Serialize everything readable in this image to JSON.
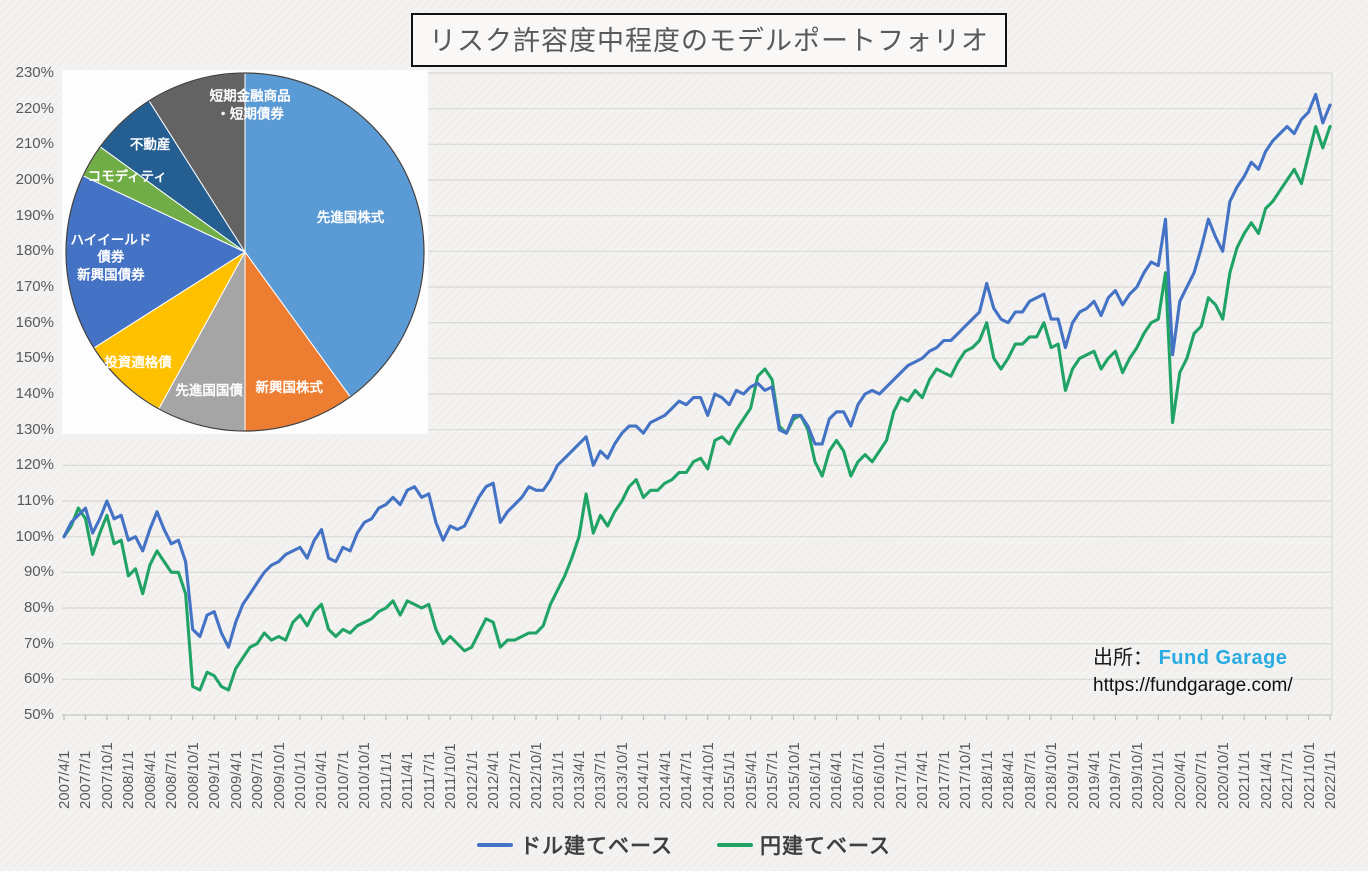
{
  "title": "リスク許容度中程度のモデルポートフォリオ",
  "source": {
    "prefix": "出所：",
    "name": "Fund Garage",
    "url": "https://fundgarage.com/",
    "name_color": "#29abe2"
  },
  "axes": {
    "y_unit": "%",
    "y_min_label": "50%",
    "y_max_label": "230%"
  },
  "chart_data": [
    {
      "type": "line",
      "title": "リスク許容度中程度のモデルポートフォリオ",
      "xlabel": "",
      "ylabel": "",
      "ylim": [
        50,
        230
      ],
      "ytick_step": 10,
      "grid": "horizontal",
      "legend_position": "bottom",
      "x_frequency": "monthly",
      "x_start": "2007/4/1",
      "x_end": "2022/1/1",
      "y_tick_labels": [
        "230%",
        "220%",
        "210%",
        "200%",
        "190%",
        "180%",
        "170%",
        "160%",
        "150%",
        "140%",
        "130%",
        "120%",
        "110%",
        "100%",
        "90%",
        "80%",
        "70%",
        "60%",
        "50%"
      ],
      "x_tick_labels": [
        "2007/4/1",
        "2007/7/1",
        "2007/10/1",
        "2008/1/1",
        "2008/4/1",
        "2008/7/1",
        "2008/10/1",
        "2009/1/1",
        "2009/4/1",
        "2009/7/1",
        "2009/10/1",
        "2010/1/1",
        "2010/4/1",
        "2010/7/1",
        "2010/10/1",
        "2011/1/1",
        "2011/4/1",
        "2011/7/1",
        "2011/10/1",
        "2012/1/1",
        "2012/4/1",
        "2012/7/1",
        "2012/10/1",
        "2013/1/1",
        "2013/4/1",
        "2013/7/1",
        "2013/10/1",
        "2014/1/1",
        "2014/4/1",
        "2014/7/1",
        "2014/10/1",
        "2015/1/1",
        "2015/4/1",
        "2015/7/1",
        "2015/10/1",
        "2016/1/1",
        "2016/4/1",
        "2016/7/1",
        "2016/10/1",
        "2017/1/1",
        "2017/4/1",
        "2017/7/1",
        "2017/10/1",
        "2018/1/1",
        "2018/4/1",
        "2018/7/1",
        "2018/10/1",
        "2019/1/1",
        "2019/4/1",
        "2019/7/1",
        "2019/10/1",
        "2020/1/1",
        "2020/4/1",
        "2020/7/1",
        "2020/10/1",
        "2021/1/1",
        "2021/4/1",
        "2021/7/1",
        "2021/10/1",
        "2022/1/1"
      ],
      "series": [
        {
          "name": "ドル建てベース",
          "color": "#4472C4",
          "values": [
            100,
            104,
            106,
            108,
            101,
            105,
            110,
            105,
            106,
            99,
            100,
            96,
            102,
            107,
            102,
            98,
            99,
            93,
            74,
            72,
            78,
            79,
            73,
            69,
            76,
            81,
            84,
            87,
            90,
            92,
            93,
            95,
            96,
            97,
            94,
            99,
            102,
            94,
            93,
            97,
            96,
            101,
            104,
            105,
            108,
            109,
            111,
            109,
            113,
            114,
            111,
            112,
            104,
            99,
            103,
            102,
            103,
            107,
            111,
            114,
            115,
            104,
            107,
            109,
            111,
            114,
            113,
            113,
            116,
            120,
            122,
            124,
            126,
            128,
            120,
            124,
            122,
            126,
            129,
            131,
            131,
            129,
            132,
            133,
            134,
            136,
            138,
            137,
            139,
            139,
            134,
            140,
            139,
            137,
            141,
            140,
            142,
            143,
            141,
            142,
            130,
            129,
            134,
            134,
            131,
            126,
            126,
            133,
            135,
            135,
            131,
            137,
            140,
            141,
            140,
            142,
            144,
            146,
            148,
            149,
            150,
            152,
            153,
            155,
            155,
            157,
            159,
            161,
            163,
            171,
            164,
            161,
            160,
            163,
            163,
            166,
            167,
            168,
            161,
            161,
            153,
            160,
            163,
            164,
            166,
            162,
            167,
            169,
            165,
            168,
            170,
            174,
            177,
            176,
            189,
            151,
            166,
            170,
            174,
            181,
            189,
            184,
            180,
            194,
            198,
            201,
            205,
            203,
            208,
            211,
            213,
            215,
            213,
            217,
            219,
            224,
            216,
            221
          ]
        },
        {
          "name": "円建てベース",
          "color": "#21A366",
          "values": [
            100,
            103,
            108,
            105,
            95,
            101,
            106,
            98,
            99,
            89,
            91,
            84,
            92,
            96,
            93,
            90,
            90,
            84,
            58,
            57,
            62,
            61,
            58,
            57,
            63,
            66,
            69,
            70,
            73,
            71,
            72,
            71,
            76,
            78,
            75,
            79,
            81,
            74,
            72,
            74,
            73,
            75,
            76,
            77,
            79,
            80,
            82,
            78,
            82,
            81,
            80,
            81,
            74,
            70,
            72,
            70,
            68,
            69,
            73,
            77,
            76,
            69,
            71,
            71,
            72,
            73,
            73,
            75,
            81,
            85,
            89,
            94,
            100,
            112,
            101,
            106,
            103,
            107,
            110,
            114,
            116,
            111,
            113,
            113,
            115,
            116,
            118,
            118,
            121,
            122,
            119,
            127,
            128,
            126,
            130,
            133,
            136,
            145,
            147,
            144,
            131,
            129,
            133,
            134,
            130,
            121,
            117,
            124,
            127,
            124,
            117,
            121,
            123,
            121,
            124,
            127,
            135,
            139,
            138,
            141,
            139,
            144,
            147,
            146,
            145,
            149,
            152,
            153,
            155,
            160,
            150,
            147,
            150,
            154,
            154,
            156,
            156,
            160,
            153,
            154,
            141,
            147,
            150,
            151,
            152,
            147,
            150,
            152,
            146,
            150,
            153,
            157,
            160,
            161,
            174,
            132,
            146,
            150,
            157,
            159,
            167,
            165,
            161,
            174,
            181,
            185,
            188,
            185,
            192,
            194,
            197,
            200,
            203,
            199,
            207,
            215,
            209,
            215
          ]
        }
      ]
    },
    {
      "type": "pie",
      "title": "",
      "unit": "%",
      "start_angle": 0,
      "direction": "clockwise",
      "labels": [
        "先進国株式",
        "新興国株式",
        "先進国国債",
        "投資適格債",
        "ハイイールド\n債券\n新興国債券",
        "コモディティ",
        "不動産",
        "短期金融商品\n・短期債券"
      ],
      "values": [
        40,
        10,
        8,
        8,
        16,
        3,
        6,
        9
      ],
      "colors": [
        "#5B9BD5",
        "#ED7D31",
        "#A5A5A5",
        "#FFC000",
        "#4472C4",
        "#70AD47",
        "#255E91",
        "#636363"
      ]
    }
  ]
}
